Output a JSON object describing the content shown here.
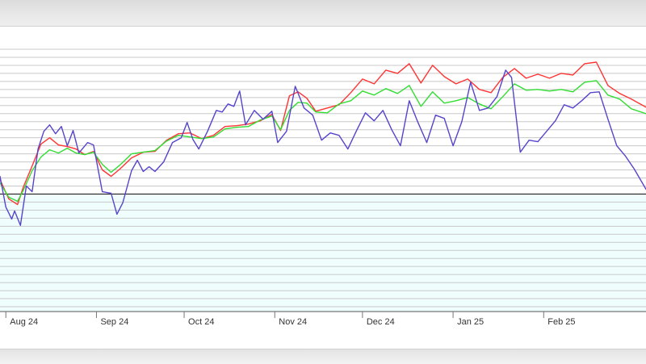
{
  "colors": {
    "background": "#ffffff",
    "band_fill": "#effdfd",
    "grid": "#c8c8c8",
    "baseline": "#222222",
    "red_series": "#ff3333",
    "green_series": "#33dd33",
    "blue_series": "#5544cc"
  },
  "chart_data": {
    "type": "line",
    "title": "",
    "xlabel": "",
    "ylabel": "",
    "x_tick_labels": [
      "Aug 24",
      "Sep 24",
      "Oct 24",
      "Nov 24",
      "Dec 24",
      "Jan 25",
      "Feb 25"
    ],
    "x_range": [
      "2024-07-30",
      "2025-03-08"
    ],
    "y_range": [
      -14.6,
      18
    ],
    "y_grid_step": 1,
    "baseline_value": 0,
    "grid": true,
    "legend": "none",
    "series": [
      {
        "color": "#ff3333",
        "points": [
          [
            "2024-07-30",
            1.8
          ],
          [
            "2024-08-02",
            -0.6
          ],
          [
            "2024-08-05",
            -1.3
          ],
          [
            "2024-08-07",
            0.9
          ],
          [
            "2024-08-10",
            3.5
          ],
          [
            "2024-08-13",
            6.2
          ],
          [
            "2024-08-16",
            7.0
          ],
          [
            "2024-08-19",
            6.1
          ],
          [
            "2024-08-22",
            5.9
          ],
          [
            "2024-08-25",
            5.6
          ],
          [
            "2024-08-28",
            4.9
          ],
          [
            "2024-08-31",
            5.3
          ],
          [
            "2024-09-03",
            3.0
          ],
          [
            "2024-09-06",
            2.2
          ],
          [
            "2024-09-09",
            3.1
          ],
          [
            "2024-09-13",
            4.5
          ],
          [
            "2024-09-17",
            5.2
          ],
          [
            "2024-09-21",
            5.3
          ],
          [
            "2024-09-25",
            6.7
          ],
          [
            "2024-09-29",
            7.5
          ],
          [
            "2024-10-03",
            7.6
          ],
          [
            "2024-10-07",
            6.9
          ],
          [
            "2024-10-11",
            7.3
          ],
          [
            "2024-10-15",
            8.4
          ],
          [
            "2024-10-19",
            8.5
          ],
          [
            "2024-10-23",
            8.7
          ],
          [
            "2024-10-27",
            9.1
          ],
          [
            "2024-10-31",
            9.9
          ],
          [
            "2024-11-03",
            7.9
          ],
          [
            "2024-11-06",
            12.2
          ],
          [
            "2024-11-09",
            12.7
          ],
          [
            "2024-11-12",
            11.9
          ],
          [
            "2024-11-15",
            10.3
          ],
          [
            "2024-11-19",
            10.7
          ],
          [
            "2024-11-23",
            11.1
          ],
          [
            "2024-11-27",
            12.6
          ],
          [
            "2024-12-01",
            14.3
          ],
          [
            "2024-12-05",
            13.7
          ],
          [
            "2024-12-09",
            15.4
          ],
          [
            "2024-12-13",
            15.0
          ],
          [
            "2024-12-17",
            16.2
          ],
          [
            "2024-12-21",
            13.8
          ],
          [
            "2024-12-25",
            16.0
          ],
          [
            "2024-12-29",
            14.6
          ],
          [
            "2025-01-02",
            13.7
          ],
          [
            "2025-01-06",
            14.3
          ],
          [
            "2025-01-10",
            13.0
          ],
          [
            "2025-01-14",
            12.6
          ],
          [
            "2025-01-18",
            14.5
          ],
          [
            "2025-01-22",
            15.6
          ],
          [
            "2025-01-26",
            14.4
          ],
          [
            "2025-01-30",
            14.9
          ],
          [
            "2025-02-03",
            14.4
          ],
          [
            "2025-02-07",
            15.0
          ],
          [
            "2025-02-11",
            14.8
          ],
          [
            "2025-02-15",
            16.2
          ],
          [
            "2025-02-19",
            16.4
          ],
          [
            "2025-02-23",
            13.5
          ],
          [
            "2025-02-27",
            12.5
          ],
          [
            "2025-03-03",
            11.8
          ],
          [
            "2025-03-08",
            10.8
          ]
        ]
      },
      {
        "color": "#33dd33",
        "points": [
          [
            "2024-07-30",
            1.4
          ],
          [
            "2024-08-02",
            -0.4
          ],
          [
            "2024-08-05",
            -0.9
          ],
          [
            "2024-08-07",
            0.5
          ],
          [
            "2024-08-10",
            2.9
          ],
          [
            "2024-08-13",
            4.6
          ],
          [
            "2024-08-16",
            5.5
          ],
          [
            "2024-08-19",
            5.1
          ],
          [
            "2024-08-22",
            5.7
          ],
          [
            "2024-08-25",
            5.1
          ],
          [
            "2024-08-28",
            4.9
          ],
          [
            "2024-08-31",
            5.2
          ],
          [
            "2024-09-03",
            3.7
          ],
          [
            "2024-09-06",
            2.7
          ],
          [
            "2024-09-09",
            3.6
          ],
          [
            "2024-09-13",
            5.0
          ],
          [
            "2024-09-17",
            5.2
          ],
          [
            "2024-09-21",
            5.4
          ],
          [
            "2024-09-25",
            6.6
          ],
          [
            "2024-09-29",
            7.3
          ],
          [
            "2024-10-03",
            7.1
          ],
          [
            "2024-10-07",
            6.9
          ],
          [
            "2024-10-11",
            7.1
          ],
          [
            "2024-10-15",
            8.1
          ],
          [
            "2024-10-19",
            8.3
          ],
          [
            "2024-10-23",
            8.4
          ],
          [
            "2024-10-27",
            9.2
          ],
          [
            "2024-10-31",
            9.7
          ],
          [
            "2024-11-03",
            8.0
          ],
          [
            "2024-11-06",
            10.4
          ],
          [
            "2024-11-09",
            11.4
          ],
          [
            "2024-11-12",
            11.3
          ],
          [
            "2024-11-15",
            10.2
          ],
          [
            "2024-11-19",
            10.1
          ],
          [
            "2024-11-23",
            11.2
          ],
          [
            "2024-11-27",
            11.6
          ],
          [
            "2024-12-01",
            12.8
          ],
          [
            "2024-12-05",
            12.3
          ],
          [
            "2024-12-09",
            13.1
          ],
          [
            "2024-12-13",
            12.5
          ],
          [
            "2024-12-17",
            13.5
          ],
          [
            "2024-12-21",
            10.9
          ],
          [
            "2024-12-25",
            12.7
          ],
          [
            "2024-12-29",
            11.3
          ],
          [
            "2025-01-02",
            11.6
          ],
          [
            "2025-01-06",
            12.0
          ],
          [
            "2025-01-10",
            11.2
          ],
          [
            "2025-01-14",
            10.6
          ],
          [
            "2025-01-18",
            12.1
          ],
          [
            "2025-01-22",
            13.7
          ],
          [
            "2025-01-26",
            12.9
          ],
          [
            "2025-01-30",
            13.0
          ],
          [
            "2025-02-03",
            12.8
          ],
          [
            "2025-02-07",
            13.0
          ],
          [
            "2025-02-11",
            12.7
          ],
          [
            "2025-02-15",
            13.9
          ],
          [
            "2025-02-19",
            14.1
          ],
          [
            "2025-02-23",
            12.3
          ],
          [
            "2025-02-27",
            11.8
          ],
          [
            "2025-03-03",
            10.6
          ],
          [
            "2025-03-08",
            10.0
          ]
        ]
      },
      {
        "color": "#5544cc",
        "points": [
          [
            "2024-07-30",
            2.2
          ],
          [
            "2024-08-01",
            -1.6
          ],
          [
            "2024-08-03",
            -3.1
          ],
          [
            "2024-08-04",
            -2.1
          ],
          [
            "2024-08-06",
            -3.9
          ],
          [
            "2024-08-08",
            1.0
          ],
          [
            "2024-08-10",
            0.3
          ],
          [
            "2024-08-12",
            5.6
          ],
          [
            "2024-08-14",
            7.8
          ],
          [
            "2024-08-16",
            8.6
          ],
          [
            "2024-08-18",
            7.5
          ],
          [
            "2024-08-20",
            8.4
          ],
          [
            "2024-08-22",
            6.0
          ],
          [
            "2024-08-24",
            7.9
          ],
          [
            "2024-08-26",
            5.1
          ],
          [
            "2024-08-29",
            6.4
          ],
          [
            "2024-08-31",
            6.1
          ],
          [
            "2024-09-03",
            0.3
          ],
          [
            "2024-09-06",
            0.1
          ],
          [
            "2024-09-08",
            -2.5
          ],
          [
            "2024-09-10",
            -1.1
          ],
          [
            "2024-09-13",
            2.9
          ],
          [
            "2024-09-15",
            4.2
          ],
          [
            "2024-09-17",
            2.8
          ],
          [
            "2024-09-19",
            3.4
          ],
          [
            "2024-09-21",
            2.8
          ],
          [
            "2024-09-24",
            4.0
          ],
          [
            "2024-09-27",
            6.4
          ],
          [
            "2024-09-30",
            7.0
          ],
          [
            "2024-10-02",
            8.9
          ],
          [
            "2024-10-04",
            6.8
          ],
          [
            "2024-10-06",
            5.6
          ],
          [
            "2024-10-09",
            7.8
          ],
          [
            "2024-10-12",
            10.4
          ],
          [
            "2024-10-14",
            10.2
          ],
          [
            "2024-10-16",
            11.2
          ],
          [
            "2024-10-18",
            10.9
          ],
          [
            "2024-10-20",
            12.8
          ],
          [
            "2024-10-22",
            8.6
          ],
          [
            "2024-10-25",
            10.4
          ],
          [
            "2024-10-28",
            9.3
          ],
          [
            "2024-10-31",
            10.3
          ],
          [
            "2024-11-02",
            6.4
          ],
          [
            "2024-11-05",
            7.8
          ],
          [
            "2024-11-08",
            13.4
          ],
          [
            "2024-11-11",
            10.7
          ],
          [
            "2024-11-14",
            9.8
          ],
          [
            "2024-11-17",
            6.7
          ],
          [
            "2024-11-20",
            7.6
          ],
          [
            "2024-11-23",
            7.3
          ],
          [
            "2024-11-26",
            5.6
          ],
          [
            "2024-11-29",
            7.9
          ],
          [
            "2024-12-02",
            10.1
          ],
          [
            "2024-12-05",
            9.1
          ],
          [
            "2024-12-08",
            10.4
          ],
          [
            "2024-12-11",
            8.0
          ],
          [
            "2024-12-14",
            6.0
          ],
          [
            "2024-12-17",
            11.6
          ],
          [
            "2024-12-20",
            8.9
          ],
          [
            "2024-12-23",
            6.4
          ],
          [
            "2024-12-26",
            9.8
          ],
          [
            "2024-12-29",
            9.4
          ],
          [
            "2025-01-01",
            6.0
          ],
          [
            "2025-01-04",
            9.0
          ],
          [
            "2025-01-07",
            13.9
          ],
          [
            "2025-01-10",
            10.4
          ],
          [
            "2025-01-13",
            10.7
          ],
          [
            "2025-01-16",
            12.1
          ],
          [
            "2025-01-19",
            15.4
          ],
          [
            "2025-01-21",
            14.5
          ],
          [
            "2025-01-24",
            5.2
          ],
          [
            "2025-01-27",
            6.7
          ],
          [
            "2025-01-30",
            6.5
          ],
          [
            "2025-02-02",
            7.8
          ],
          [
            "2025-02-05",
            9.1
          ],
          [
            "2025-02-08",
            11.1
          ],
          [
            "2025-02-11",
            10.7
          ],
          [
            "2025-02-14",
            11.6
          ],
          [
            "2025-02-17",
            12.6
          ],
          [
            "2025-02-20",
            12.7
          ],
          [
            "2025-02-23",
            9.3
          ],
          [
            "2025-02-26",
            6.0
          ],
          [
            "2025-03-01",
            4.7
          ],
          [
            "2025-03-04",
            3.1
          ],
          [
            "2025-03-08",
            0.6
          ]
        ]
      }
    ]
  }
}
